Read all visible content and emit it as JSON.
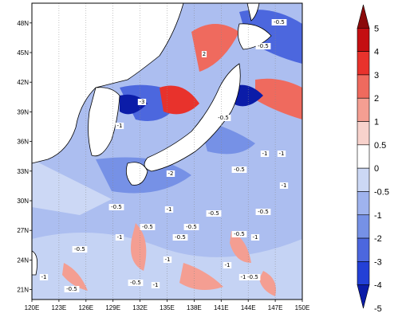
{
  "map": {
    "lat_ticks": [
      "48N",
      "45N",
      "42N",
      "39N",
      "36N",
      "33N",
      "30N",
      "27N",
      "24N",
      "21N"
    ],
    "lon_ticks": [
      "120E",
      "123E",
      "126E",
      "129E",
      "132E",
      "135E",
      "138E",
      "141E",
      "144E",
      "147E",
      "150E"
    ],
    "lat_range": [
      20,
      50
    ],
    "lon_range": [
      120,
      150
    ],
    "contour_labels": [
      "2",
      "-0.5",
      "-0.5",
      "-0.5",
      "-1",
      "-1",
      "-0.5",
      "-0.5",
      "-2",
      "-3",
      "-1",
      "-1",
      "-0.5",
      "-0.5",
      "-0.5",
      "-0.5",
      "-1",
      "-1",
      "-1",
      "-0.5",
      "-1",
      "-0.5",
      "-0.5",
      "-1",
      "-0.5",
      "-1",
      "-1",
      "-0.5",
      "-1",
      "-0.5"
    ]
  },
  "colorbar": {
    "levels": [
      "5",
      "4",
      "3",
      "2",
      "1",
      "0.5",
      "0",
      "-0.5",
      "-1",
      "-2",
      "-3",
      "-4",
      "-5"
    ],
    "colors": [
      "#8b0a0a",
      "#c40f12",
      "#e8322c",
      "#ef6a5e",
      "#f49e92",
      "#f8d2cc",
      "#ffffff",
      "#ccd8f5",
      "#9fb3ee",
      "#7691e6",
      "#4c67de",
      "#2340d6",
      "#0b1ca8"
    ]
  }
}
